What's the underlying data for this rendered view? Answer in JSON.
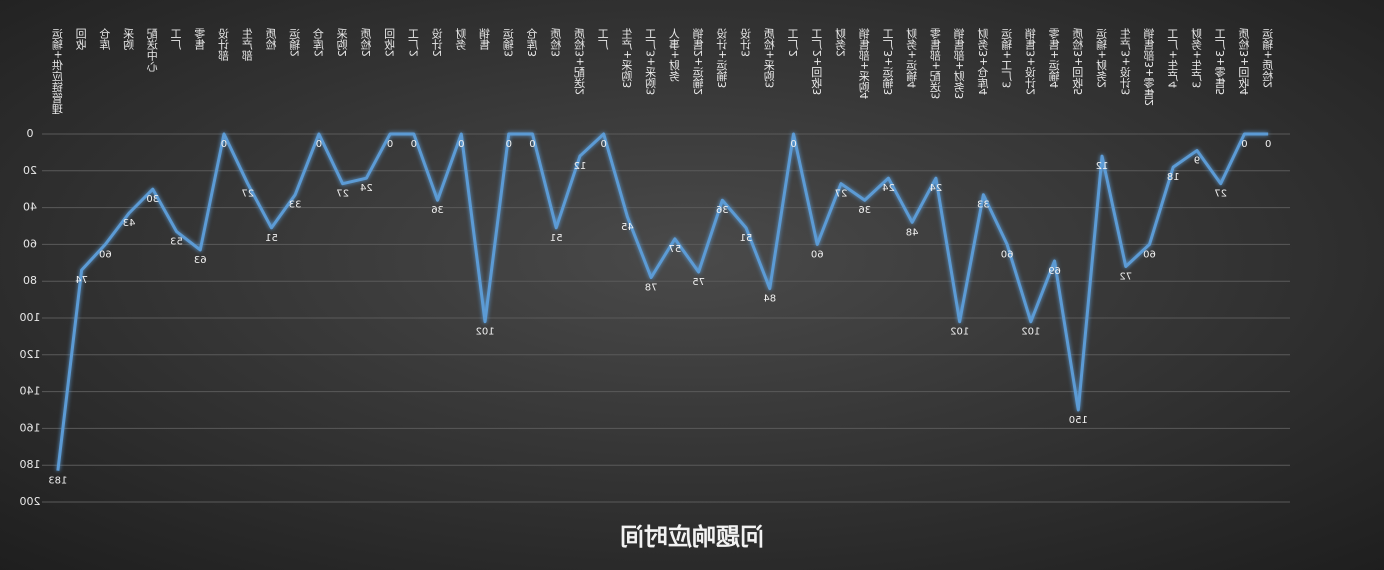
{
  "chart_data": {
    "type": "line",
    "title": "问题响应时间",
    "categories": [
      "运输+供应链管理",
      "回收",
      "仓库",
      "采购",
      "配送中心",
      "工厂",
      "零售",
      "设计部",
      "生产部",
      "质检",
      "运输2",
      "仓库2",
      "采购2",
      "质检2",
      "回收2",
      "工厂2",
      "设计2",
      "财务",
      "销售",
      "运输3",
      "仓库3",
      "质检3",
      "质检3+配送2",
      "工厂",
      "生产+采购3",
      "工厂3+采购3",
      "人事+财务",
      "销售2+运输2",
      "设计+运输3",
      "设计3",
      "质检+采购3",
      "工厂2",
      "工厂2+回收3",
      "财务2",
      "销售部+采购4",
      "工厂3+运输3",
      "财务+运输4",
      "零售部+配送3",
      "销售部+财务3",
      "财务3+仓库4",
      "运输+工厂3",
      "销售3+设计2",
      "零售+运输4",
      "质检3+回收5",
      "运输+财务2",
      "生产3+设计3",
      "销售部3+零售2",
      "工厂+生产4",
      "财务+生产3",
      "工厂3+零售5",
      "质检3+回收4",
      "运输+质检2"
    ],
    "series": [
      {
        "name": "响应时间",
        "color": "#5b9bd5",
        "values": [
          183,
          74,
          60,
          43,
          30,
          53,
          63,
          0,
          27,
          51,
          33,
          0,
          27,
          24,
          0,
          0,
          36,
          0,
          102,
          0,
          0,
          51,
          12,
          0,
          45,
          78,
          57,
          75,
          36,
          51,
          84,
          0,
          60,
          27,
          36,
          24,
          48,
          24,
          102,
          33,
          60,
          102,
          69,
          150,
          12,
          72,
          60,
          18,
          9,
          27,
          0,
          0
        ]
      }
    ],
    "ylim": [
      0,
      200
    ],
    "yticks": [
      0,
      20,
      40,
      60,
      80,
      100,
      120,
      140,
      160,
      180,
      200
    ],
    "y_inverted": true,
    "mirrored": true,
    "grid": true
  }
}
